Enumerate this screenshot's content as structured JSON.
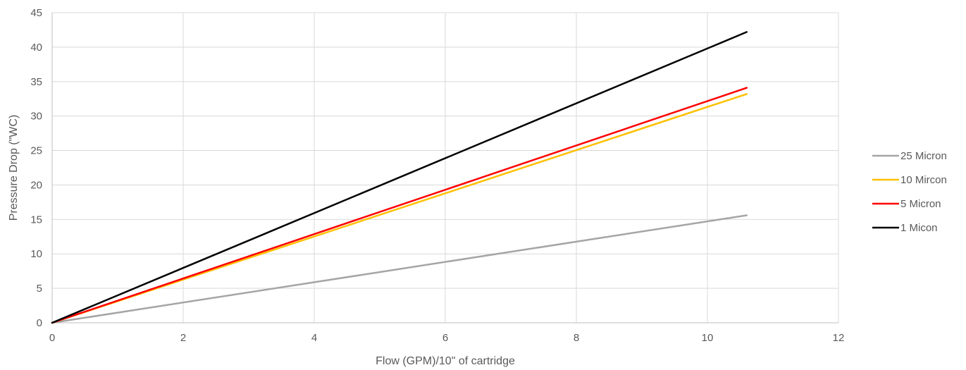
{
  "chart_data": {
    "type": "line",
    "title": "",
    "xlabel": "Flow (GPM)/10\" of cartridge",
    "ylabel": "Pressure Drop (\"WC)",
    "xlim": [
      0,
      12
    ],
    "ylim": [
      0,
      45
    ],
    "xticks": [
      0,
      2,
      4,
      6,
      8,
      10,
      12
    ],
    "yticks": [
      0,
      5,
      10,
      15,
      20,
      25,
      30,
      35,
      40,
      45
    ],
    "grid": true,
    "legend_position": "right",
    "series": [
      {
        "name": "25 Micron",
        "color": "#a5a5a5",
        "x": [
          0,
          10.6
        ],
        "y": [
          0,
          15.6
        ]
      },
      {
        "name": "10 Mircon",
        "color": "#ffc000",
        "x": [
          0,
          10.6
        ],
        "y": [
          0,
          33.2
        ]
      },
      {
        "name": "5 Micron",
        "color": "#ff0000",
        "x": [
          0,
          10.6
        ],
        "y": [
          0,
          34.1
        ]
      },
      {
        "name": "1 Micon",
        "color": "#000000",
        "x": [
          0,
          10.6
        ],
        "y": [
          0,
          42.2
        ]
      }
    ]
  }
}
